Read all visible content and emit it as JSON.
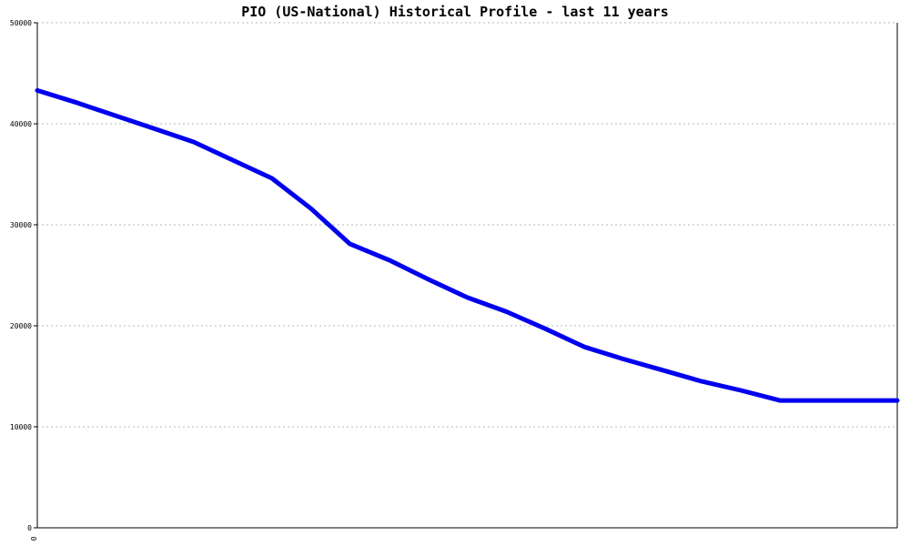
{
  "chart_data": {
    "type": "line",
    "title": "PIO (US-National) Historical Profile - last 11 years",
    "xlabel": "",
    "ylabel": "",
    "ylim": [
      0,
      50000
    ],
    "y_ticks": [
      "0",
      "10000",
      "20000",
      "30000",
      "40000",
      "50000"
    ],
    "x_ticks": [
      "0"
    ],
    "grid": true,
    "line_color": "#0000ee",
    "series": [
      {
        "x": [
          0,
          1,
          2,
          3,
          4,
          5,
          6,
          7,
          8,
          9,
          10,
          11,
          12,
          13,
          14,
          15,
          16,
          17,
          18,
          19,
          20,
          21,
          22
        ],
        "values": [
          43300,
          42100,
          40800,
          39500,
          38200,
          36400,
          34600,
          31600,
          28100,
          26500,
          24600,
          22800,
          21400,
          19700,
          17900,
          16700,
          15600,
          14500,
          13600,
          12600,
          12600,
          12600,
          12600
        ]
      }
    ]
  }
}
